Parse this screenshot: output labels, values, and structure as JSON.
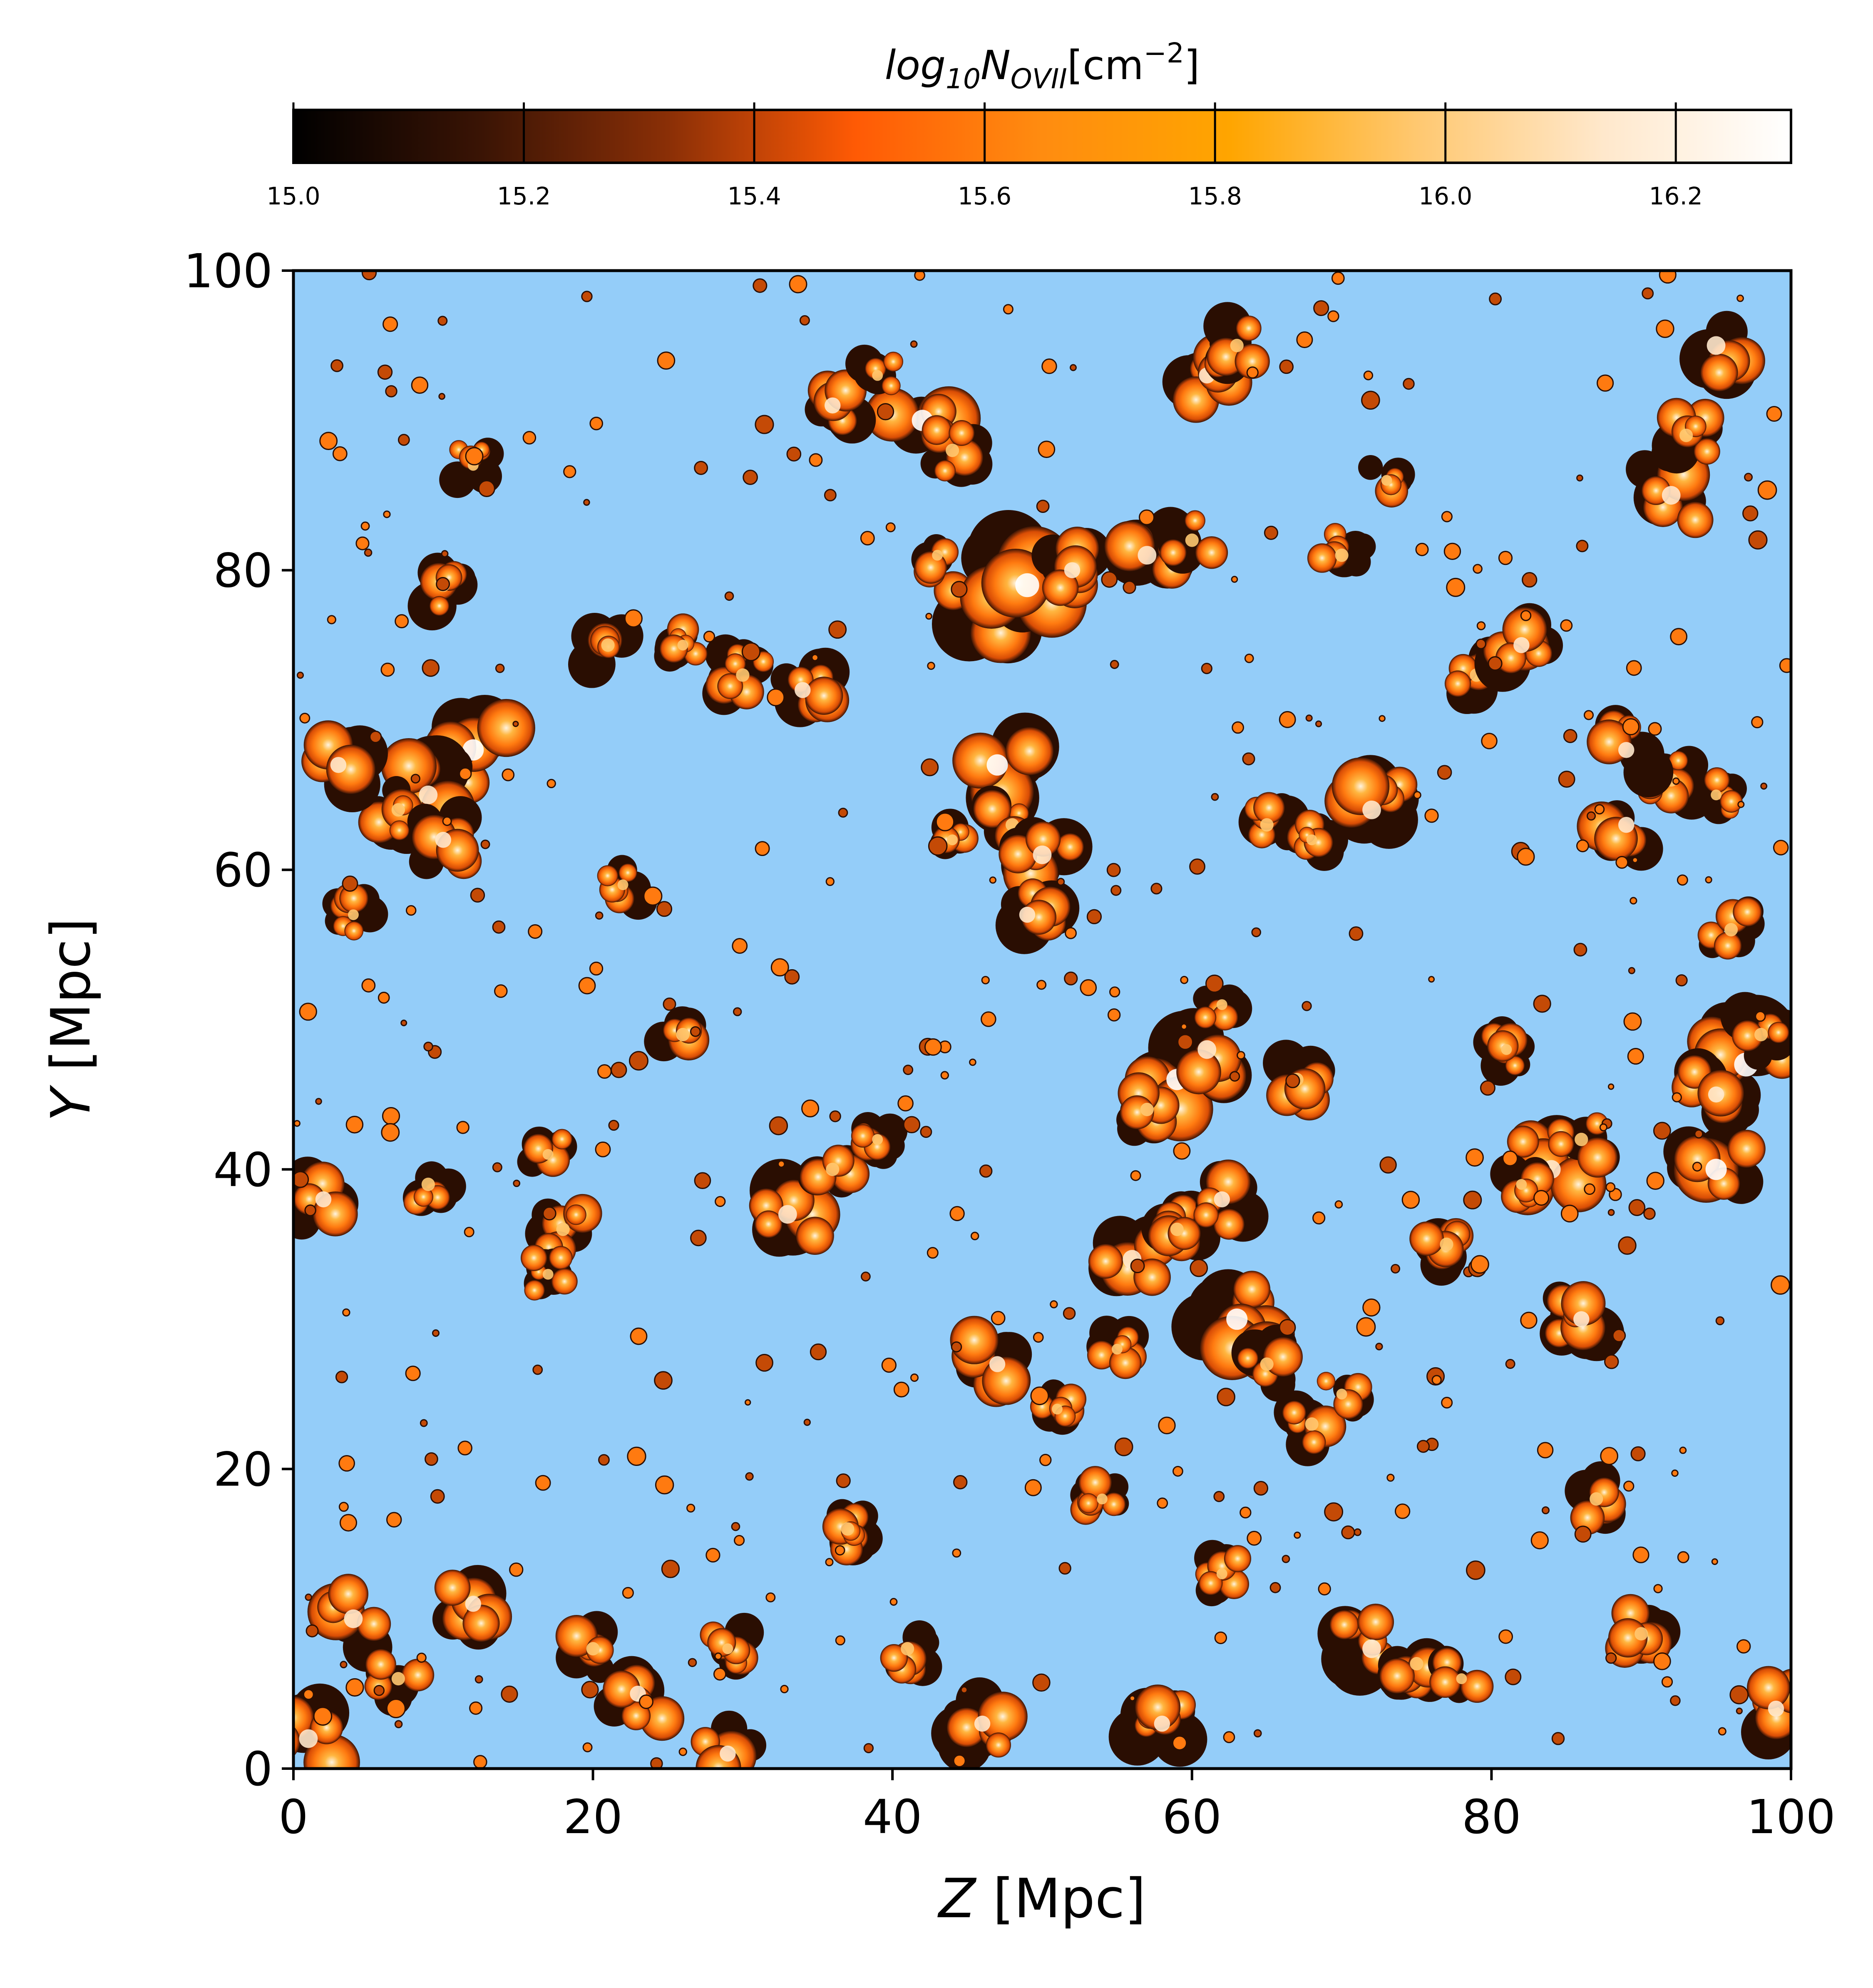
{
  "chart_data": {
    "type": "heatmap",
    "title": "",
    "xlabel": {
      "var": "Z",
      "unit": "[Mpc]"
    },
    "ylabel": {
      "var": "Y",
      "unit": "[Mpc]"
    },
    "xlim": [
      0,
      100
    ],
    "ylim": [
      0,
      100
    ],
    "xticks": [
      0,
      20,
      40,
      60,
      80,
      100
    ],
    "yticks": [
      0,
      20,
      40,
      60,
      80,
      100
    ],
    "grid": false,
    "background_color": "#94cdf9",
    "colorbar": {
      "position": "top",
      "label": "log10 N_OVII [cm^-2]",
      "label_parts": {
        "base": "log",
        "sub1": "10",
        "main": "N",
        "sub2": "OVII",
        "unit": "[cm",
        "exp": "−2",
        "close": "]"
      },
      "range": [
        15.0,
        16.3
      ],
      "ticks": [
        "15.0",
        "15.2",
        "15.4",
        "15.6",
        "15.8",
        "16.0",
        "16.2"
      ],
      "tick_values": [
        15.0,
        15.2,
        15.4,
        15.6,
        15.8,
        16.0,
        16.2
      ],
      "colormap_stops": [
        "#000000",
        "#3a1405",
        "#8a2f06",
        "#ff5a05",
        "#ff8c10",
        "#ffa500",
        "#ffc870",
        "#ffe8cc",
        "#ffffff"
      ]
    },
    "clusters": [
      {
        "z": 46,
        "y": 77,
        "value": 16.0
      },
      {
        "z": 49,
        "y": 79,
        "value": 16.1
      },
      {
        "z": 52,
        "y": 80,
        "value": 15.8
      },
      {
        "z": 57,
        "y": 81,
        "value": 15.9
      },
      {
        "z": 60,
        "y": 82,
        "value": 15.7
      },
      {
        "z": 43,
        "y": 81,
        "value": 15.6
      },
      {
        "z": 42,
        "y": 90,
        "value": 16.0
      },
      {
        "z": 44,
        "y": 88,
        "value": 15.7
      },
      {
        "z": 36,
        "y": 91,
        "value": 15.8
      },
      {
        "z": 39,
        "y": 93,
        "value": 15.6
      },
      {
        "z": 47,
        "y": 67,
        "value": 16.0
      },
      {
        "z": 48,
        "y": 63,
        "value": 15.7
      },
      {
        "z": 50,
        "y": 61,
        "value": 15.9
      },
      {
        "z": 49,
        "y": 57,
        "value": 15.8
      },
      {
        "z": 44,
        "y": 62,
        "value": 15.6
      },
      {
        "z": 59,
        "y": 46,
        "value": 16.0
      },
      {
        "z": 61,
        "y": 48,
        "value": 15.9
      },
      {
        "z": 57,
        "y": 44,
        "value": 15.7
      },
      {
        "z": 62,
        "y": 51,
        "value": 15.6
      },
      {
        "z": 97,
        "y": 47,
        "value": 16.1
      },
      {
        "z": 95,
        "y": 45,
        "value": 15.8
      },
      {
        "z": 95,
        "y": 40,
        "value": 16.0
      },
      {
        "z": 98,
        "y": 49,
        "value": 15.7
      },
      {
        "z": 12,
        "y": 68,
        "value": 16.0
      },
      {
        "z": 9,
        "y": 65,
        "value": 15.9
      },
      {
        "z": 7,
        "y": 64,
        "value": 15.7
      },
      {
        "z": 10,
        "y": 62,
        "value": 15.8
      },
      {
        "z": 4,
        "y": 57,
        "value": 15.6
      },
      {
        "z": 33,
        "y": 37,
        "value": 15.9
      },
      {
        "z": 36,
        "y": 40,
        "value": 15.7
      },
      {
        "z": 39,
        "y": 42,
        "value": 15.6
      },
      {
        "z": 56,
        "y": 34,
        "value": 15.9
      },
      {
        "z": 59,
        "y": 36,
        "value": 15.7
      },
      {
        "z": 62,
        "y": 38,
        "value": 15.8
      },
      {
        "z": 63,
        "y": 30,
        "value": 16.0
      },
      {
        "z": 65,
        "y": 27,
        "value": 15.7
      },
      {
        "z": 55,
        "y": 28,
        "value": 15.6
      },
      {
        "z": 47,
        "y": 27,
        "value": 15.8
      },
      {
        "z": 51,
        "y": 24,
        "value": 15.6
      },
      {
        "z": 68,
        "y": 23,
        "value": 15.7
      },
      {
        "z": 70,
        "y": 25,
        "value": 15.6
      },
      {
        "z": 84,
        "y": 40,
        "value": 15.9
      },
      {
        "z": 86,
        "y": 42,
        "value": 15.7
      },
      {
        "z": 82,
        "y": 39,
        "value": 15.6
      },
      {
        "z": 4,
        "y": 10,
        "value": 15.9
      },
      {
        "z": 7,
        "y": 6,
        "value": 15.7
      },
      {
        "z": 12,
        "y": 11,
        "value": 15.8
      },
      {
        "z": 20,
        "y": 8,
        "value": 15.7
      },
      {
        "z": 23,
        "y": 5,
        "value": 15.8
      },
      {
        "z": 65,
        "y": 63,
        "value": 15.7
      },
      {
        "z": 68,
        "y": 62,
        "value": 15.6
      },
      {
        "z": 72,
        "y": 64,
        "value": 15.9
      },
      {
        "z": 92,
        "y": 66,
        "value": 15.7
      },
      {
        "z": 95,
        "y": 65,
        "value": 15.6
      },
      {
        "z": 89,
        "y": 68,
        "value": 15.8
      },
      {
        "z": 61,
        "y": 93,
        "value": 15.8
      },
      {
        "z": 63,
        "y": 95,
        "value": 15.7
      },
      {
        "z": 92,
        "y": 85,
        "value": 15.9
      },
      {
        "z": 95,
        "y": 95,
        "value": 15.9
      },
      {
        "z": 93,
        "y": 89,
        "value": 15.7
      },
      {
        "z": 72,
        "y": 8,
        "value": 15.9
      },
      {
        "z": 75,
        "y": 7,
        "value": 15.7
      },
      {
        "z": 78,
        "y": 6,
        "value": 15.6
      },
      {
        "z": 2,
        "y": 38,
        "value": 15.8
      },
      {
        "z": 9,
        "y": 39,
        "value": 15.7
      },
      {
        "z": 18,
        "y": 36,
        "value": 15.7
      },
      {
        "z": 17,
        "y": 33,
        "value": 15.6
      },
      {
        "z": 26,
        "y": 49,
        "value": 15.7
      },
      {
        "z": 30,
        "y": 73,
        "value": 15.7
      },
      {
        "z": 34,
        "y": 72,
        "value": 15.8
      },
      {
        "z": 21,
        "y": 75,
        "value": 15.7
      },
      {
        "z": 26,
        "y": 75,
        "value": 15.6
      },
      {
        "z": 79,
        "y": 73,
        "value": 15.7
      },
      {
        "z": 82,
        "y": 75,
        "value": 15.8
      },
      {
        "z": 70,
        "y": 81,
        "value": 15.7
      },
      {
        "z": 73,
        "y": 86,
        "value": 15.6
      },
      {
        "z": 10,
        "y": 79,
        "value": 15.7
      },
      {
        "z": 12,
        "y": 87,
        "value": 15.6
      },
      {
        "z": 1,
        "y": 2,
        "value": 15.9
      },
      {
        "z": 99,
        "y": 4,
        "value": 15.8
      },
      {
        "z": 90,
        "y": 9,
        "value": 15.7
      },
      {
        "z": 58,
        "y": 3,
        "value": 15.8
      },
      {
        "z": 29,
        "y": 1,
        "value": 15.8
      },
      {
        "z": 37,
        "y": 16,
        "value": 15.7
      },
      {
        "z": 54,
        "y": 18,
        "value": 15.6
      },
      {
        "z": 86,
        "y": 30,
        "value": 15.8
      },
      {
        "z": 87,
        "y": 18,
        "value": 15.7
      },
      {
        "z": 77,
        "y": 35,
        "value": 15.7
      },
      {
        "z": 3,
        "y": 67,
        "value": 15.8
      },
      {
        "z": 17,
        "y": 41,
        "value": 15.6
      },
      {
        "z": 89,
        "y": 63,
        "value": 15.8
      },
      {
        "z": 96,
        "y": 56,
        "value": 15.7
      },
      {
        "z": 22,
        "y": 59,
        "value": 15.6
      },
      {
        "z": 67,
        "y": 46,
        "value": 15.7
      },
      {
        "z": 81,
        "y": 48,
        "value": 15.6
      },
      {
        "z": 29,
        "y": 8,
        "value": 15.6
      },
      {
        "z": 41,
        "y": 8,
        "value": 15.7
      },
      {
        "z": 46,
        "y": 3,
        "value": 15.8
      },
      {
        "z": 62,
        "y": 13,
        "value": 15.6
      }
    ]
  }
}
